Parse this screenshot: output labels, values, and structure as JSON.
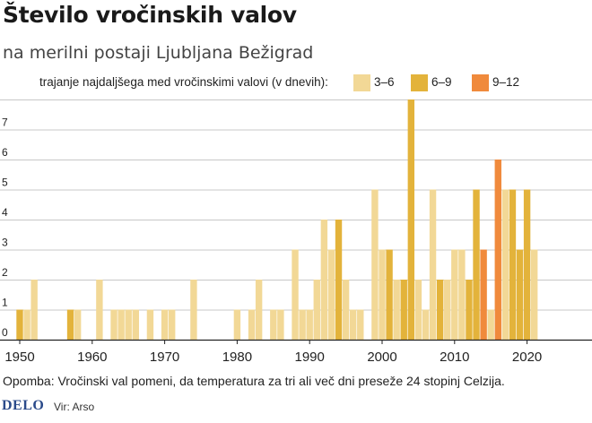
{
  "chart_data": {
    "type": "bar",
    "title": "Število vročinskih valov",
    "subtitle": "na merilni postaji Ljubljana Bežigrad",
    "legend_title": "trajanje najdaljšega med vročinskimi valovi (v dnevih):",
    "legend": [
      {
        "key": "a",
        "label": "3–6",
        "color": "#f2d896"
      },
      {
        "key": "b",
        "label": "6–9",
        "color": "#e3b33b"
      },
      {
        "key": "c",
        "label": "9–12",
        "color": "#f08a3c"
      }
    ],
    "xlim": [
      1948,
      2021
    ],
    "ylim": [
      0,
      8
    ],
    "x_ticks": [
      1950,
      1960,
      1970,
      1980,
      1990,
      2000,
      2010,
      2020
    ],
    "y_ticks": [
      0,
      1,
      2,
      3,
      4,
      5,
      6,
      7
    ],
    "grid": true,
    "data": [
      {
        "year": 1950,
        "value": 1,
        "category": "b"
      },
      {
        "year": 1951,
        "value": 1,
        "category": "a"
      },
      {
        "year": 1952,
        "value": 2,
        "category": "a"
      },
      {
        "year": 1957,
        "value": 1,
        "category": "b"
      },
      {
        "year": 1958,
        "value": 1,
        "category": "a"
      },
      {
        "year": 1961,
        "value": 2,
        "category": "a"
      },
      {
        "year": 1963,
        "value": 1,
        "category": "a"
      },
      {
        "year": 1964,
        "value": 1,
        "category": "a"
      },
      {
        "year": 1965,
        "value": 1,
        "category": "a"
      },
      {
        "year": 1966,
        "value": 1,
        "category": "a"
      },
      {
        "year": 1968,
        "value": 1,
        "category": "a"
      },
      {
        "year": 1970,
        "value": 1,
        "category": "a"
      },
      {
        "year": 1971,
        "value": 1,
        "category": "a"
      },
      {
        "year": 1974,
        "value": 2,
        "category": "a"
      },
      {
        "year": 1980,
        "value": 1,
        "category": "a"
      },
      {
        "year": 1982,
        "value": 1,
        "category": "a"
      },
      {
        "year": 1983,
        "value": 2,
        "category": "a"
      },
      {
        "year": 1985,
        "value": 1,
        "category": "a"
      },
      {
        "year": 1986,
        "value": 1,
        "category": "a"
      },
      {
        "year": 1988,
        "value": 3,
        "category": "a"
      },
      {
        "year": 1989,
        "value": 1,
        "category": "a"
      },
      {
        "year": 1990,
        "value": 1,
        "category": "a"
      },
      {
        "year": 1991,
        "value": 2,
        "category": "a"
      },
      {
        "year": 1992,
        "value": 4,
        "category": "a"
      },
      {
        "year": 1993,
        "value": 3,
        "category": "a"
      },
      {
        "year": 1994,
        "value": 4,
        "category": "b"
      },
      {
        "year": 1995,
        "value": 2,
        "category": "a"
      },
      {
        "year": 1996,
        "value": 1,
        "category": "a"
      },
      {
        "year": 1997,
        "value": 1,
        "category": "a"
      },
      {
        "year": 1999,
        "value": 5,
        "category": "a"
      },
      {
        "year": 2000,
        "value": 3,
        "category": "a"
      },
      {
        "year": 2001,
        "value": 3,
        "category": "b"
      },
      {
        "year": 2002,
        "value": 2,
        "category": "a"
      },
      {
        "year": 2003,
        "value": 2,
        "category": "b"
      },
      {
        "year": 2004,
        "value": 8,
        "category": "b"
      },
      {
        "year": 2005,
        "value": 2,
        "category": "a"
      },
      {
        "year": 2006,
        "value": 1,
        "category": "a"
      },
      {
        "year": 2007,
        "value": 5,
        "category": "a"
      },
      {
        "year": 2008,
        "value": 2,
        "category": "b"
      },
      {
        "year": 2009,
        "value": 2,
        "category": "a"
      },
      {
        "year": 2010,
        "value": 3,
        "category": "a"
      },
      {
        "year": 2011,
        "value": 3,
        "category": "a"
      },
      {
        "year": 2012,
        "value": 2,
        "category": "b"
      },
      {
        "year": 2013,
        "value": 5,
        "category": "b"
      },
      {
        "year": 2014,
        "value": 3,
        "category": "c"
      },
      {
        "year": 2015,
        "value": 1,
        "category": "a"
      },
      {
        "year": 2016,
        "value": 6,
        "category": "c"
      },
      {
        "year": 2017,
        "value": 5,
        "category": "a"
      },
      {
        "year": 2018,
        "value": 5,
        "category": "b"
      },
      {
        "year": 2019,
        "value": 3,
        "category": "b"
      },
      {
        "year": 2020,
        "value": 5,
        "category": "b"
      },
      {
        "year": 2021,
        "value": 3,
        "category": "a"
      }
    ]
  },
  "note": "Opomba: Vročinski val pomeni, da temperatura za tri ali več dni preseže 24 stopinj Celzija.",
  "footer": {
    "logo": "DELO",
    "source": "Vir: Arso"
  }
}
